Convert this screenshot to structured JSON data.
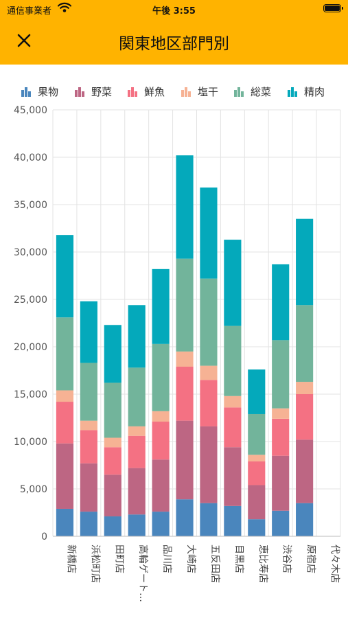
{
  "status_bar": {
    "carrier": "通信事業者",
    "time": "午後 3:55"
  },
  "header": {
    "title": "関東地区部門別",
    "close_icon": "close-icon",
    "background": "#FFB300"
  },
  "chart_data": {
    "type": "bar",
    "stacked": true,
    "categories": [
      "新橋店",
      "浜松町店",
      "田町店",
      "高輪ゲート…",
      "品川店",
      "大崎店",
      "五反田店",
      "目黒店",
      "恵比寿店",
      "渋谷店",
      "原宿店",
      "代々木店"
    ],
    "series": [
      {
        "name": "果物",
        "color": "#4A86BD",
        "values": [
          2900,
          2600,
          2100,
          2300,
          2600,
          3900,
          3500,
          3200,
          1800,
          2700,
          3500,
          0
        ]
      },
      {
        "name": "野菜",
        "color": "#BD6683",
        "values": [
          6900,
          5100,
          4400,
          4900,
          5500,
          8300,
          8100,
          6200,
          3600,
          5800,
          6700,
          0
        ]
      },
      {
        "name": "鮮魚",
        "color": "#F47183",
        "values": [
          4400,
          3500,
          2900,
          3400,
          4000,
          5700,
          4900,
          4200,
          2500,
          3900,
          4800,
          0
        ]
      },
      {
        "name": "塩干",
        "color": "#F6B294",
        "values": [
          1200,
          1000,
          1000,
          1000,
          1100,
          1600,
          1500,
          1200,
          700,
          1100,
          1300,
          0
        ]
      },
      {
        "name": "総菜",
        "color": "#72B49B",
        "values": [
          7700,
          6100,
          5800,
          6200,
          7100,
          9800,
          9200,
          7400,
          4300,
          7200,
          8100,
          0
        ]
      },
      {
        "name": "精肉",
        "color": "#04A9BB",
        "values": [
          8700,
          6500,
          6100,
          6600,
          7900,
          10900,
          9600,
          9100,
          4700,
          8000,
          9100,
          0
        ]
      }
    ],
    "ylim": [
      0,
      45000
    ],
    "yticks": [
      0,
      5000,
      10000,
      15000,
      20000,
      25000,
      30000,
      35000,
      40000,
      45000
    ],
    "ytick_labels": [
      "0",
      "5,000",
      "10,000",
      "15,000",
      "20,000",
      "25,000",
      "30,000",
      "35,000",
      "40,000",
      "45,000"
    ],
    "grid": true,
    "legend_position": "top"
  }
}
